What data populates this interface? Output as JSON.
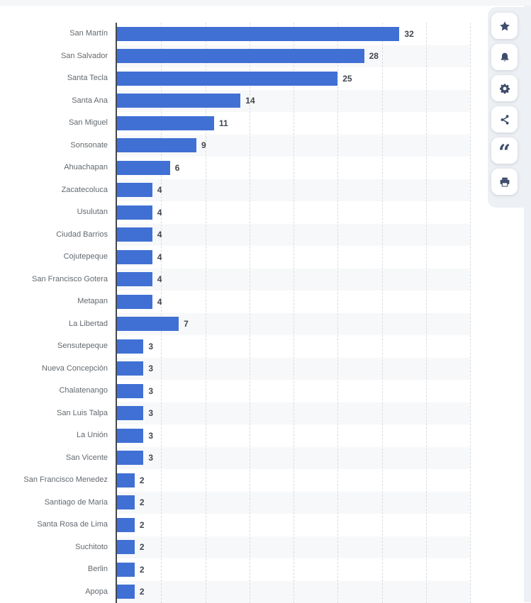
{
  "page": {
    "top_strip_color": "#f5f6f8",
    "right_strip_color": "#edf0f4",
    "background": "#ffffff"
  },
  "chart_data": {
    "type": "bar",
    "orientation": "horizontal",
    "title": "",
    "xlabel": "",
    "ylabel": "",
    "categories": [
      "San Martín",
      "San Salvador",
      "Santa Tecla",
      "Santa Ana",
      "San Miguel",
      "Sonsonate",
      "Ahuachapan",
      "Zacatecoluca",
      "Usulutan",
      "Ciudad Barrios",
      "Cojutepeque",
      "San Francisco Gotera",
      "Metapan",
      "La Libertad",
      "Sensutepeque",
      "Nueva Concepción",
      "Chalatenango",
      "San Luis Talpa",
      "La Unión",
      "San Vicente",
      "San Francisco Menedez",
      "Santiago de Maria",
      "Santa Rosa de Lima",
      "Suchitoto",
      "Berlin",
      "Apopa"
    ],
    "values": [
      32,
      28,
      25,
      14,
      11,
      9,
      6,
      4,
      4,
      4,
      4,
      4,
      4,
      7,
      3,
      3,
      3,
      3,
      3,
      3,
      2,
      2,
      2,
      2,
      2,
      2
    ],
    "xlim": [
      0,
      40
    ],
    "grid": true,
    "grid_step": 5,
    "bar_color": "#4070d4",
    "label_color": "#63696f",
    "value_label_color": "#40474e",
    "stripe_color": "#f7f8f9",
    "axis_color": "#44484d",
    "legend": null
  },
  "toolbar": {
    "buttons": [
      {
        "name": "favorite",
        "icon": "star-icon"
      },
      {
        "name": "notifications",
        "icon": "bell-icon"
      },
      {
        "name": "settings",
        "icon": "gear-icon"
      },
      {
        "name": "share",
        "icon": "share-icon"
      },
      {
        "name": "cite",
        "icon": "quote-icon"
      },
      {
        "name": "print",
        "icon": "print-icon"
      }
    ]
  }
}
